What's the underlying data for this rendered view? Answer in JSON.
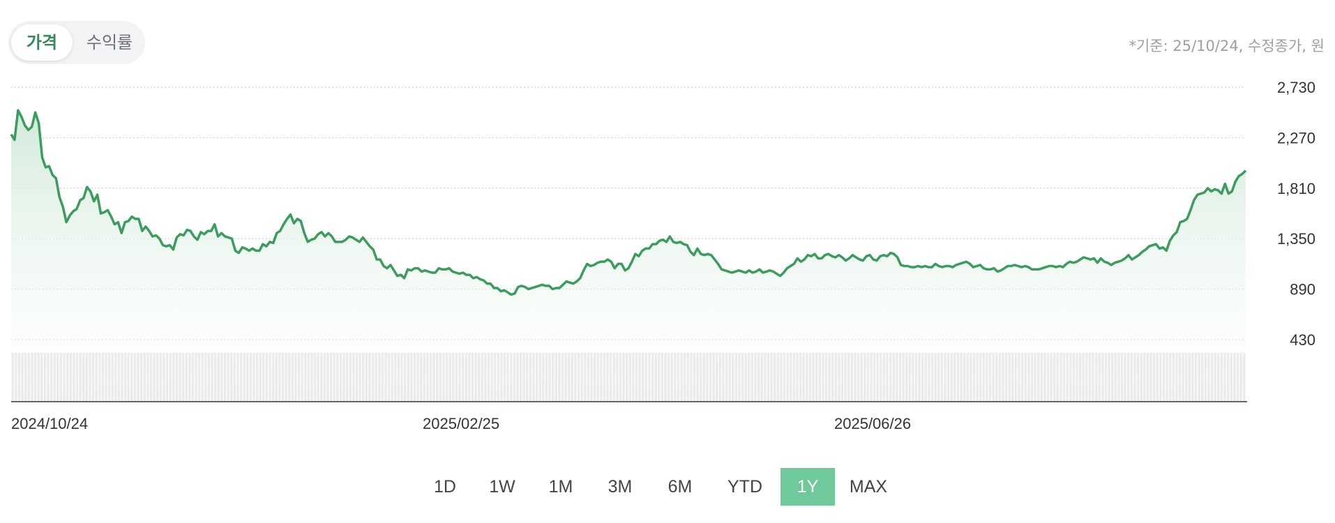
{
  "tabs": {
    "price": "가격",
    "return": "수익률",
    "active": "price"
  },
  "basis_note": "*기준: 25/10/24, 수정종가, 원",
  "ranges": [
    "1D",
    "1W",
    "1M",
    "3M",
    "6M",
    "YTD",
    "1Y",
    "MAX"
  ],
  "active_range": "1Y",
  "colors": {
    "line": "#3a9d5d",
    "fill_top": "#cfe9d8",
    "active_range": "#6fc99a",
    "volume": "#e3e3e3",
    "grid": "#c8c8c8"
  },
  "chart_data": {
    "type": "area",
    "x_ticks": [
      "2024/10/24",
      "2025/02/25",
      "2025/06/26"
    ],
    "y_ticks": [
      2730,
      2270,
      1810,
      1350,
      890,
      430
    ],
    "y_tick_labels": [
      "2,730",
      "2,270",
      "1,810",
      "1,350",
      "890",
      "430"
    ],
    "ylim": [
      430,
      2730
    ],
    "grid": true,
    "price_series": [
      2300,
      2250,
      2520,
      2460,
      2380,
      2340,
      2370,
      2500,
      2400,
      2090,
      2000,
      2010,
      1930,
      1900,
      1730,
      1640,
      1500,
      1560,
      1600,
      1620,
      1700,
      1720,
      1820,
      1780,
      1690,
      1750,
      1580,
      1590,
      1610,
      1550,
      1480,
      1500,
      1400,
      1500,
      1510,
      1550,
      1530,
      1530,
      1420,
      1460,
      1420,
      1370,
      1380,
      1350,
      1290,
      1280,
      1290,
      1250,
      1360,
      1390,
      1380,
      1430,
      1420,
      1370,
      1340,
      1410,
      1390,
      1420,
      1420,
      1480,
      1370,
      1400,
      1370,
      1360,
      1350,
      1240,
      1220,
      1270,
      1260,
      1240,
      1260,
      1240,
      1240,
      1300,
      1280,
      1320,
      1310,
      1400,
      1420,
      1480,
      1530,
      1570,
      1490,
      1530,
      1510,
      1400,
      1320,
      1340,
      1350,
      1390,
      1410,
      1370,
      1400,
      1370,
      1320,
      1320,
      1320,
      1340,
      1370,
      1360,
      1340,
      1320,
      1360,
      1320,
      1280,
      1250,
      1160,
      1160,
      1100,
      1080,
      1110,
      1060,
      1010,
      1020,
      990,
      1070,
      1060,
      1080,
      1080,
      1050,
      1060,
      1050,
      1040,
      1040,
      1080,
      1070,
      1070,
      1080,
      1050,
      1040,
      1030,
      1040,
      1020,
      1020,
      990,
      1000,
      980,
      970,
      940,
      940,
      900,
      900,
      870,
      880,
      860,
      840,
      850,
      910,
      920,
      910,
      890,
      900,
      910,
      920,
      930,
      920,
      920,
      890,
      900,
      900,
      930,
      960,
      950,
      940,
      960,
      990,
      1060,
      1120,
      1100,
      1110,
      1130,
      1140,
      1140,
      1160,
      1140,
      1080,
      1120,
      1120,
      1060,
      1080,
      1140,
      1210,
      1190,
      1240,
      1260,
      1260,
      1300,
      1300,
      1330,
      1340,
      1320,
      1370,
      1320,
      1310,
      1320,
      1300,
      1290,
      1230,
      1200,
      1260,
      1210,
      1200,
      1210,
      1200,
      1160,
      1120,
      1070,
      1060,
      1050,
      1040,
      1050,
      1060,
      1050,
      1040,
      1060,
      1040,
      1050,
      1070,
      1040,
      1050,
      1060,
      1050,
      1030,
      1010,
      1040,
      1080,
      1100,
      1120,
      1170,
      1140,
      1160,
      1200,
      1190,
      1210,
      1170,
      1170,
      1200,
      1210,
      1190,
      1180,
      1200,
      1180,
      1150,
      1170,
      1200,
      1180,
      1160,
      1150,
      1190,
      1200,
      1160,
      1150,
      1190,
      1200,
      1190,
      1220,
      1210,
      1180,
      1110,
      1100,
      1100,
      1090,
      1090,
      1100,
      1090,
      1100,
      1090,
      1090,
      1120,
      1100,
      1090,
      1100,
      1100,
      1090,
      1110,
      1120,
      1130,
      1140,
      1120,
      1090,
      1100,
      1110,
      1080,
      1070,
      1070,
      1080,
      1050,
      1060,
      1080,
      1100,
      1100,
      1110,
      1100,
      1090,
      1100,
      1090,
      1070,
      1070,
      1070,
      1080,
      1090,
      1100,
      1100,
      1090,
      1100,
      1090,
      1120,
      1140,
      1130,
      1140,
      1160,
      1180,
      1170,
      1160,
      1170,
      1130,
      1170,
      1140,
      1130,
      1110,
      1130,
      1140,
      1150,
      1170,
      1200,
      1160,
      1180,
      1200,
      1230,
      1250,
      1280,
      1290,
      1300,
      1260,
      1270,
      1240,
      1330,
      1380,
      1410,
      1500,
      1510,
      1530,
      1610,
      1700,
      1750,
      1760,
      1770,
      1810,
      1780,
      1800,
      1790,
      1760,
      1850,
      1760,
      1780,
      1870,
      1920,
      1940,
      1970
    ],
    "volume_series": [
      1,
      1,
      1,
      1,
      1,
      1,
      1,
      1,
      1,
      1,
      1,
      1,
      1,
      1,
      1,
      1,
      1,
      1,
      1,
      1,
      1,
      1,
      1,
      1,
      1,
      1,
      1,
      1,
      1,
      1,
      1,
      1,
      1,
      1,
      1,
      1,
      1,
      1,
      1,
      1,
      1,
      1,
      1,
      1,
      1,
      1,
      1,
      1,
      1,
      1,
      1,
      1,
      1,
      1,
      1,
      1,
      1,
      1,
      1,
      1,
      1,
      1,
      1,
      1,
      1,
      1,
      1,
      1,
      1,
      1,
      1,
      1,
      1,
      1,
      1,
      1,
      1,
      1,
      1,
      1,
      1,
      1,
      1,
      1,
      1,
      1,
      1,
      1,
      1,
      1,
      1,
      1,
      1,
      1,
      1,
      1,
      1,
      1,
      1,
      1,
      1,
      1,
      1,
      1,
      1,
      1,
      1,
      1,
      1,
      1,
      1,
      1,
      1,
      1,
      1,
      1,
      1,
      1,
      1,
      1,
      1,
      1,
      1,
      1,
      1,
      1,
      1,
      1,
      1,
      1,
      1,
      1,
      1,
      1,
      1,
      1,
      1,
      1,
      1,
      1,
      1,
      1,
      1,
      1,
      1,
      1,
      1,
      1,
      1,
      1,
      1,
      1,
      1,
      1,
      1,
      1,
      1,
      1,
      1,
      1,
      1,
      1,
      1,
      1,
      1,
      1,
      1,
      1,
      1,
      1,
      1,
      1,
      1,
      1,
      1,
      1,
      1,
      1,
      1,
      1,
      1,
      1,
      1,
      1,
      1,
      1,
      1,
      1,
      1,
      1,
      1,
      1,
      1,
      1,
      1,
      1,
      1,
      1,
      1,
      1,
      1,
      1,
      1,
      1,
      1,
      1,
      1,
      1,
      1,
      1,
      1,
      1,
      1,
      1,
      1,
      1,
      1,
      1,
      1,
      1,
      1,
      1,
      1,
      1,
      1,
      1,
      1,
      1,
      1,
      1,
      1,
      1,
      1,
      1,
      1,
      1,
      1,
      1,
      1,
      1,
      1,
      1,
      1,
      1,
      1,
      1,
      1,
      1,
      1,
      1,
      1,
      1,
      1,
      1,
      1,
      1,
      1,
      1,
      1,
      1,
      1,
      1,
      1,
      1,
      1,
      1,
      1,
      1,
      1,
      1,
      1,
      1,
      1,
      1,
      1,
      1,
      1,
      1,
      1,
      1,
      1,
      1,
      1,
      1,
      1,
      1,
      1,
      1,
      1,
      1,
      1,
      1,
      1,
      1,
      1,
      1,
      1,
      1,
      1,
      1,
      1,
      1,
      1,
      1,
      1,
      1,
      1,
      1,
      1,
      1,
      1,
      1,
      1,
      1,
      1,
      1,
      1,
      1,
      1,
      1,
      1,
      1,
      1,
      1,
      1,
      1,
      1,
      1,
      1,
      1,
      1,
      1,
      1,
      1,
      1,
      1,
      1,
      1,
      1,
      1,
      1,
      1,
      1,
      1,
      1,
      1,
      1,
      1,
      1,
      1,
      1,
      1,
      1,
      1,
      1,
      1,
      1,
      1,
      1,
      1,
      1,
      1,
      1,
      1,
      1,
      1,
      1,
      1,
      1,
      1,
      1,
      1,
      1,
      1,
      1,
      1,
      1,
      1,
      1,
      1,
      1,
      1,
      1,
      1
    ]
  }
}
